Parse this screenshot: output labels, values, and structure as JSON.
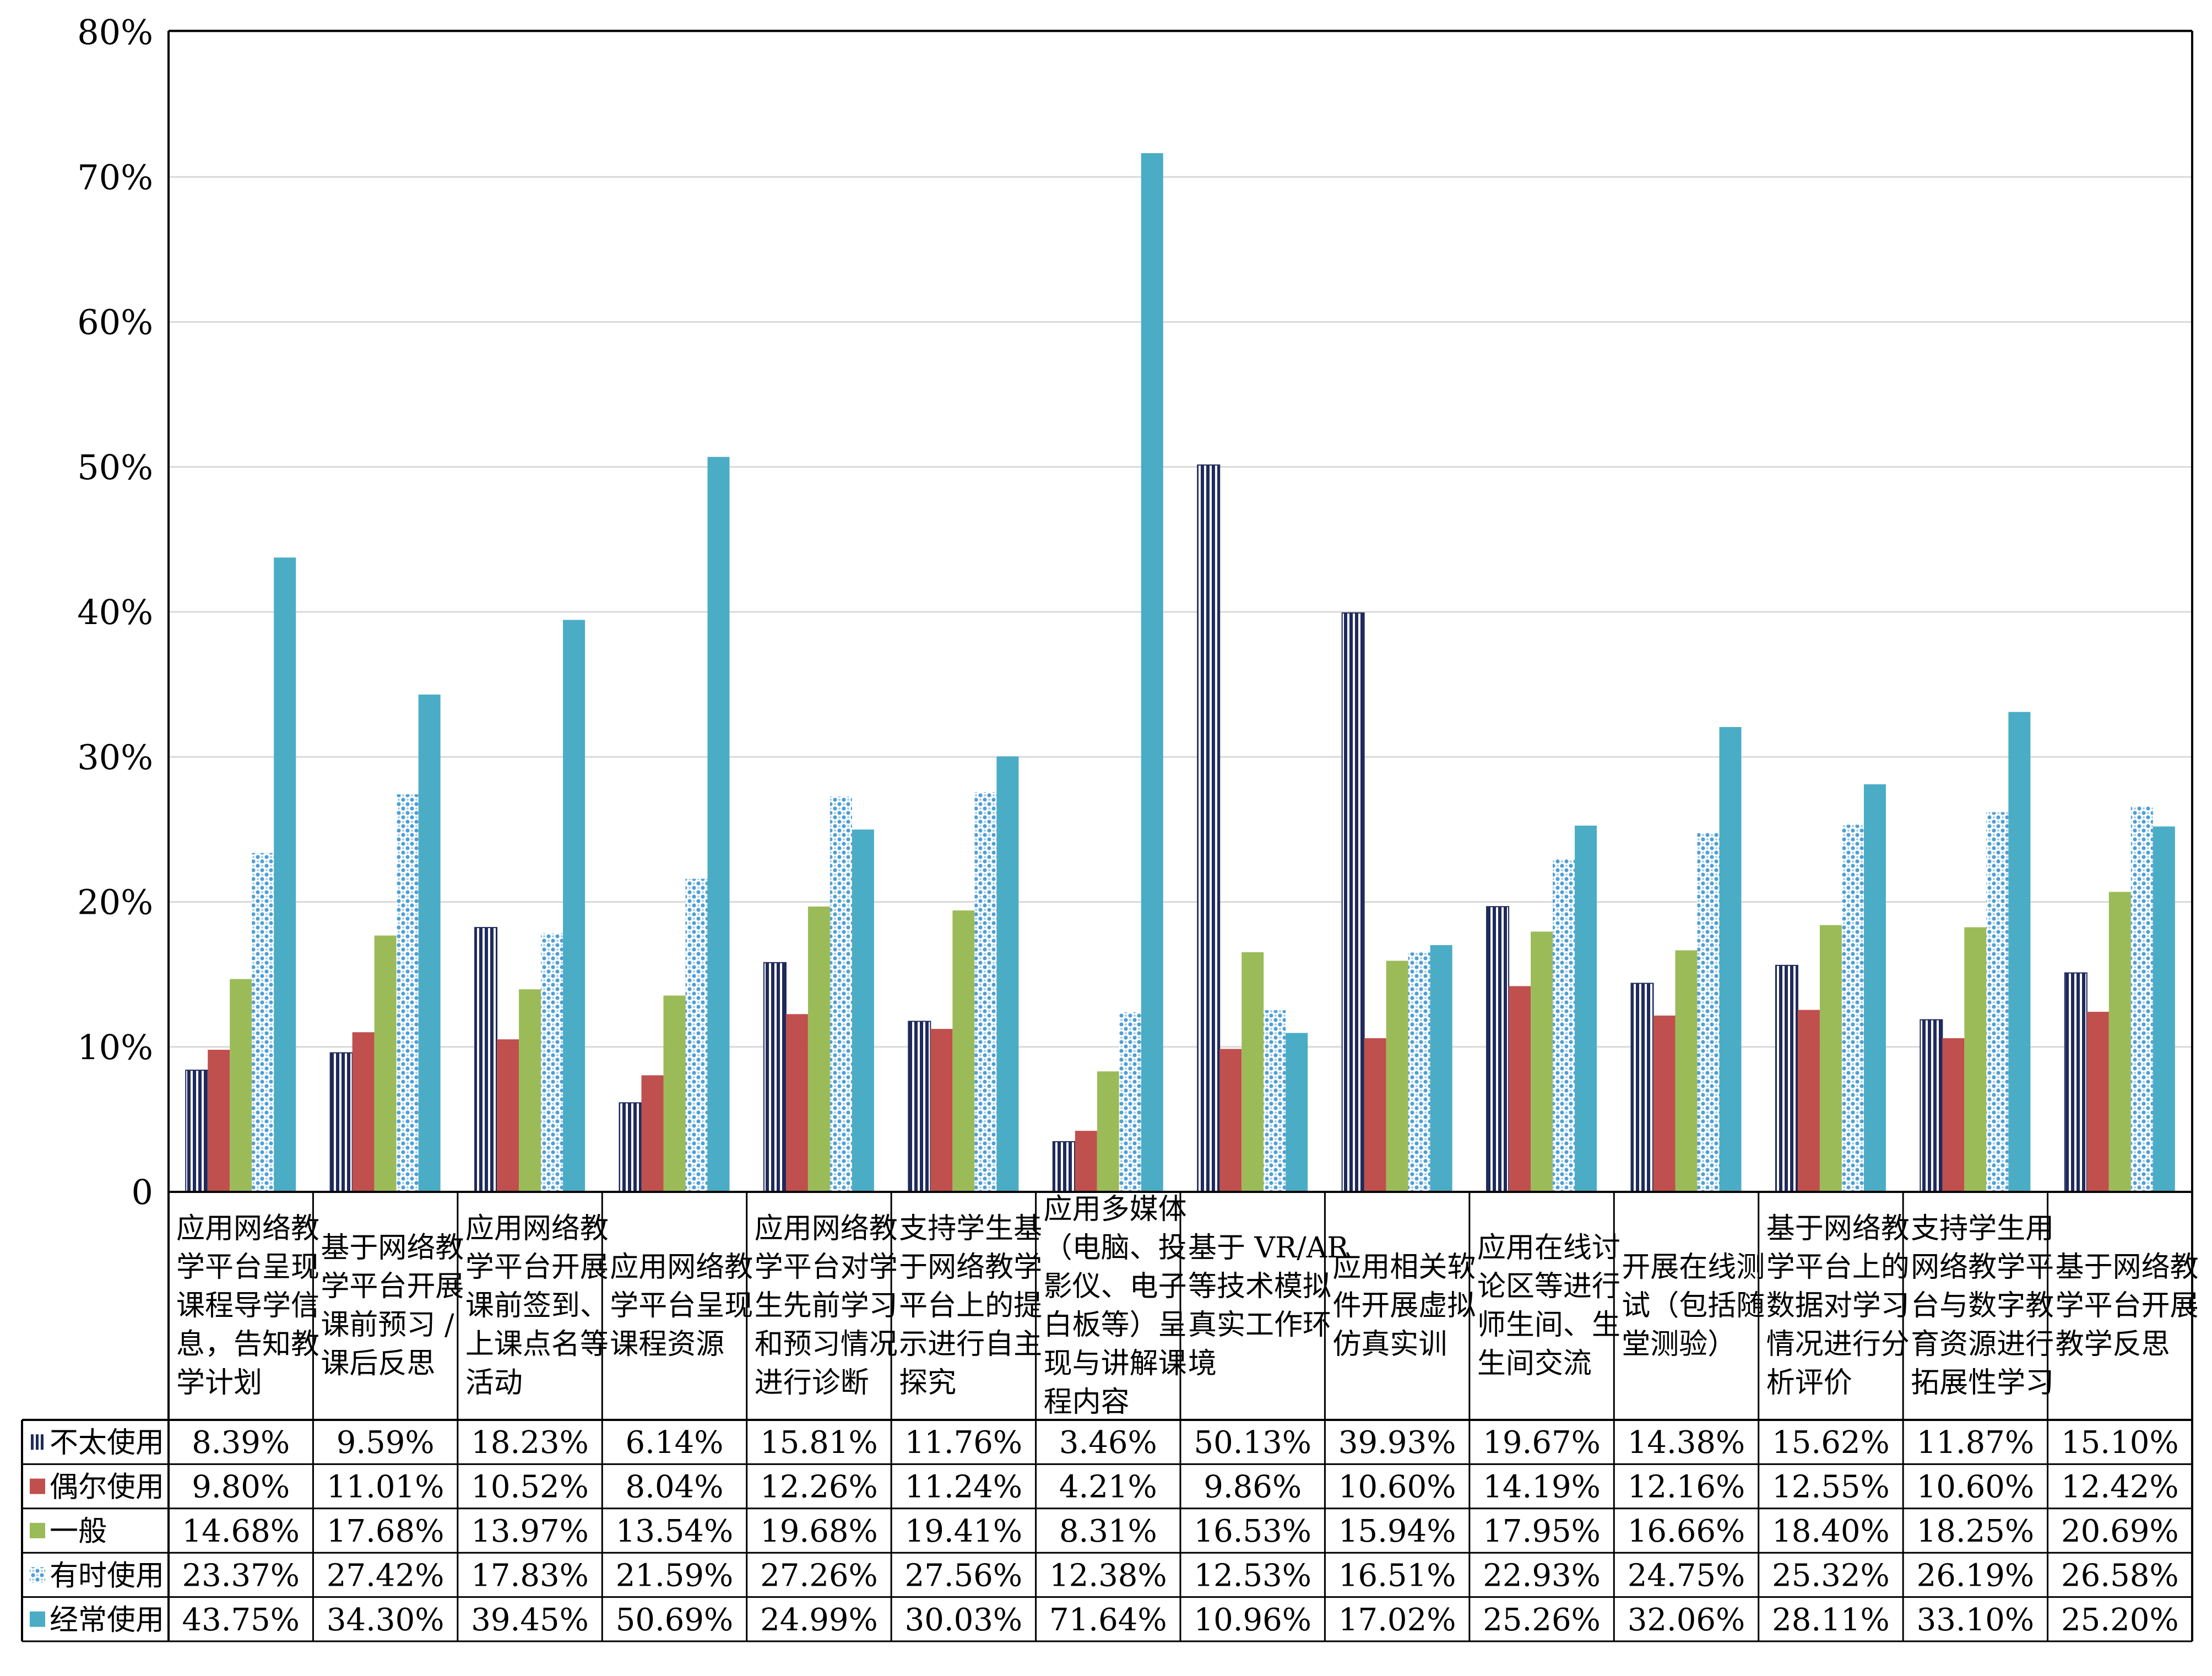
{
  "chart_data": {
    "type": "bar",
    "title": "",
    "xlabel": "",
    "ylabel": "",
    "ylim": [
      0,
      80
    ],
    "y_ticks": [
      "0",
      "10%",
      "20%",
      "30%",
      "40%",
      "50%",
      "60%",
      "70%",
      "80%"
    ],
    "grid": true,
    "legend": "table-left",
    "categories": [
      [
        "应用网络教",
        "学平台呈现",
        "课程导学信",
        "息，告知教",
        "学计划"
      ],
      [
        "基于网络教",
        "学平台开展",
        "课前预习 /",
        "课后反思"
      ],
      [
        "应用网络教",
        "学平台开展",
        "课前签到、",
        "上课点名等",
        "活动"
      ],
      [
        "应用网络教",
        "学平台呈现",
        "课程资源"
      ],
      [
        "应用网络教",
        "学平台对学",
        "生先前学习",
        "和预习情况",
        "进行诊断"
      ],
      [
        "支持学生基",
        "于网络教学",
        "平台上的提",
        "示进行自主",
        "探究"
      ],
      [
        "应用多媒体",
        "（电脑、投",
        "影仪、电子",
        "白板等）呈",
        "现与讲解课",
        "程内容"
      ],
      [
        "基于 VR/AR",
        "等技术模拟",
        "真实工作环",
        "境"
      ],
      [
        "应用相关软",
        "件开展虚拟",
        "仿真实训"
      ],
      [
        "应用在线讨",
        "论区等进行",
        "师生间、生",
        "生间交流"
      ],
      [
        "开展在线测",
        "试（包括随",
        "堂测验）"
      ],
      [
        "基于网络教",
        "学平台上的",
        "数据对学习",
        "情况进行分",
        "析评价"
      ],
      [
        "支持学生用",
        "网络教学平",
        "台与数字教",
        "育资源进行",
        "拓展性学习"
      ],
      [
        "基于网络教",
        "学平台开展",
        "教学反思"
      ]
    ],
    "series": [
      {
        "name": "不太使用",
        "color": "#1f2a5c",
        "pattern": "vertical-stripes",
        "values": [
          8.39,
          9.59,
          18.23,
          6.14,
          15.81,
          11.76,
          3.46,
          50.13,
          39.93,
          19.67,
          14.38,
          15.62,
          11.87,
          15.1
        ],
        "labels": [
          "8.39%",
          "9.59%",
          "18.23%",
          "6.14%",
          "15.81%",
          "11.76%",
          "3.46%",
          "50.13%",
          "39.93%",
          "19.67%",
          "14.38%",
          "15.62%",
          "11.87%",
          "15.10%"
        ]
      },
      {
        "name": "偶尔使用",
        "color": "#c0504d",
        "pattern": "solid",
        "values": [
          9.8,
          11.01,
          10.52,
          8.04,
          12.26,
          11.24,
          4.21,
          9.86,
          10.6,
          14.19,
          12.16,
          12.55,
          10.6,
          12.42
        ],
        "labels": [
          "9.80%",
          "11.01%",
          "10.52%",
          "8.04%",
          "12.26%",
          "11.24%",
          "4.21%",
          "9.86%",
          "10.60%",
          "14.19%",
          "12.16%",
          "12.55%",
          "10.60%",
          "12.42%"
        ]
      },
      {
        "name": "一般",
        "color": "#9bbb59",
        "pattern": "solid",
        "values": [
          14.68,
          17.68,
          13.97,
          13.54,
          19.68,
          19.41,
          8.31,
          16.53,
          15.94,
          17.95,
          16.66,
          18.4,
          18.25,
          20.69
        ],
        "labels": [
          "14.68%",
          "17.68%",
          "13.97%",
          "13.54%",
          "19.68%",
          "19.41%",
          "8.31%",
          "16.53%",
          "15.94%",
          "17.95%",
          "16.66%",
          "18.40%",
          "18.25%",
          "20.69%"
        ]
      },
      {
        "name": "有时使用",
        "color": "#4f9fd6",
        "pattern": "dots",
        "values": [
          23.37,
          27.42,
          17.83,
          21.59,
          27.26,
          27.56,
          12.38,
          12.53,
          16.51,
          22.93,
          24.75,
          25.32,
          26.19,
          26.58
        ],
        "labels": [
          "23.37%",
          "27.42%",
          "17.83%",
          "21.59%",
          "27.26%",
          "27.56%",
          "12.38%",
          "12.53%",
          "16.51%",
          "22.93%",
          "24.75%",
          "25.32%",
          "26.19%",
          "26.58%"
        ]
      },
      {
        "name": "经常使用",
        "color": "#4bacc6",
        "pattern": "solid",
        "values": [
          43.75,
          34.3,
          39.45,
          50.69,
          24.99,
          30.03,
          71.64,
          10.96,
          17.02,
          25.26,
          32.06,
          28.11,
          33.1,
          25.2
        ],
        "labels": [
          "43.75%",
          "34.30%",
          "39.45%",
          "50.69%",
          "24.99%",
          "30.03%",
          "71.64%",
          "10.96%",
          "17.02%",
          "25.26%",
          "32.06%",
          "28.11%",
          "33.10%",
          "25.20%"
        ]
      }
    ]
  }
}
